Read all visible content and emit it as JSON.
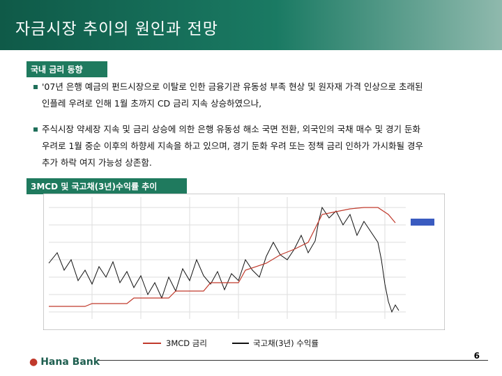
{
  "header": {
    "title": "자금시장 추이의 원인과 전망"
  },
  "sections": [
    {
      "heading": "국내 금리 동향",
      "bullets": [
        [
          "'07년 은행 예금의 펀드시장으로 이탈로 인한 금융기관 유동성 부족 현상 및 원자재 가격 인상으로 초래된",
          "인플레 우려로 인해 1월 초까지 CD 금리 지속 상승하였으나,"
        ],
        [
          "주식시장 약세장 지속 및 금리 상승에 의한 은행 유동성 해소 국면 전환, 외국인의 국채 매수 및 경기 둔화",
          "우려로 1월 중순 이후의 하향세 지속을 하고 있으며, 경기 둔화 우려 또는 정책 금리 인하가 가시화될 경우",
          "추가 하락 여지 가능성 상존함."
        ]
      ]
    },
    {
      "heading": "3MCD 및 국고채(3년)수익률 추이",
      "legend": [
        "3MCD 금리",
        "국고채(3년) 수익률"
      ]
    }
  ],
  "footer": {
    "logo": "Hana Bank",
    "page": "6"
  }
}
